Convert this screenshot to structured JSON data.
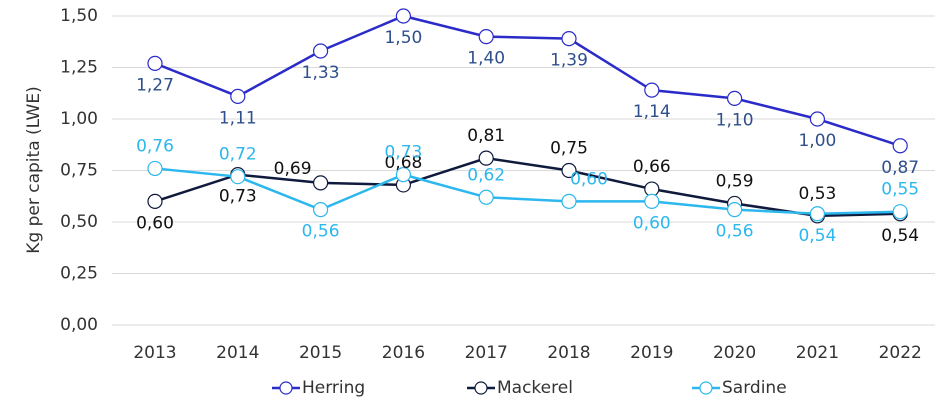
{
  "chart_data": {
    "type": "line",
    "y_label": "Kg per capita (LWE)",
    "categories": [
      "2013",
      "2014",
      "2015",
      "2016",
      "2017",
      "2018",
      "2019",
      "2020",
      "2021",
      "2022"
    ],
    "series": [
      {
        "name": "Herring",
        "color": "#2b2bc9",
        "label_color": "#2f4f8c",
        "values": [
          1.27,
          1.11,
          1.33,
          1.5,
          1.4,
          1.39,
          1.14,
          1.1,
          1.0,
          0.87
        ],
        "value_labels": [
          "1,27",
          "1,11",
          "1,33",
          "1,50",
          "1,40",
          "1,39",
          "1,14",
          "1,10",
          "1,00",
          "0,87"
        ]
      },
      {
        "name": "Mackerel",
        "color": "#0f1a3c",
        "label_color": "#111111",
        "values": [
          0.6,
          0.73,
          0.69,
          0.68,
          0.81,
          0.75,
          0.66,
          0.59,
          0.53,
          0.54
        ],
        "value_labels": [
          "0,60",
          "0,73",
          "0,69",
          "0,68",
          "0,81",
          "0,75",
          "0,66",
          "0,59",
          "0,53",
          "0,54"
        ]
      },
      {
        "name": "Sardine",
        "color": "#2cb7ee",
        "label_color": "#2cb7ee",
        "values": [
          0.76,
          0.72,
          0.56,
          0.73,
          0.62,
          0.6,
          0.6,
          0.56,
          0.54,
          0.55
        ],
        "value_labels": [
          "0,76",
          "0,72",
          "0,56",
          "0,73",
          "0,62",
          "0,60",
          "0,60",
          "0,56",
          "0,54",
          "0,55"
        ]
      }
    ],
    "ylim": [
      0,
      1.5
    ],
    "yticks": [
      {
        "value": 0,
        "label": "0,00"
      },
      {
        "value": 0.25,
        "label": "0,25"
      },
      {
        "value": 0.5,
        "label": "0,50"
      },
      {
        "value": 0.75,
        "label": "0,75"
      },
      {
        "value": 1.0,
        "label": "1,00"
      },
      {
        "value": 1.25,
        "label": "1,25"
      },
      {
        "value": 1.5,
        "label": "1,50"
      }
    ],
    "grid": true,
    "legend": "bottom"
  }
}
